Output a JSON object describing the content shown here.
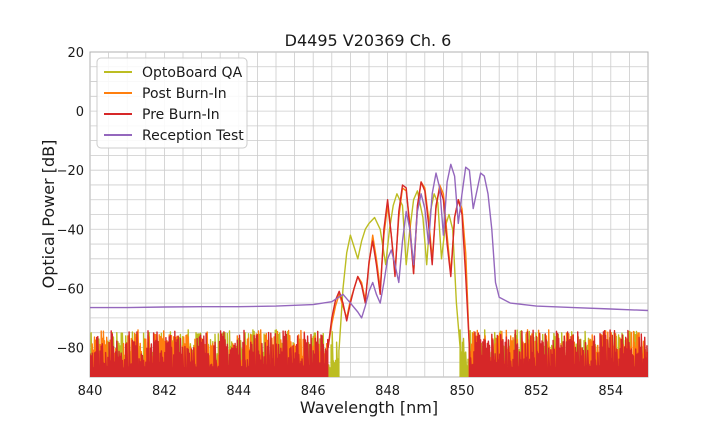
{
  "chart_data": {
    "type": "line",
    "title": "D4495 V20369 Ch. 6",
    "xlabel": "Wavelength [nm]",
    "ylabel": "Optical Power [dB]",
    "xlim": [
      840,
      855
    ],
    "ylim": [
      -90,
      20
    ],
    "xticks": [
      840,
      842,
      844,
      846,
      848,
      850,
      852,
      854
    ],
    "yticks": [
      -80,
      -60,
      -40,
      -20,
      0,
      20
    ],
    "minor_grid": true,
    "legend": "top-left",
    "series": [
      {
        "name": "OptoBoard QA",
        "color": "#bcbd22",
        "noise_range": [
          840,
          846.7
        ],
        "points": [
          [
            846.7,
            -80
          ],
          [
            846.8,
            -60
          ],
          [
            846.9,
            -48
          ],
          [
            847.0,
            -42
          ],
          [
            847.1,
            -46
          ],
          [
            847.2,
            -50
          ],
          [
            847.3,
            -44
          ],
          [
            847.4,
            -40
          ],
          [
            847.5,
            -38
          ],
          [
            847.65,
            -36
          ],
          [
            847.8,
            -40
          ],
          [
            847.95,
            -52
          ],
          [
            848.05,
            -40
          ],
          [
            848.15,
            -32
          ],
          [
            848.25,
            -28
          ],
          [
            848.4,
            -32
          ],
          [
            848.5,
            -52
          ],
          [
            848.6,
            -40
          ],
          [
            848.7,
            -30
          ],
          [
            848.8,
            -27
          ],
          [
            848.95,
            -36
          ],
          [
            849.05,
            -52
          ],
          [
            849.15,
            -34
          ],
          [
            849.25,
            -28
          ],
          [
            849.35,
            -31
          ],
          [
            849.45,
            -50
          ],
          [
            849.55,
            -39
          ],
          [
            849.65,
            -35
          ],
          [
            849.75,
            -40
          ],
          [
            849.85,
            -65
          ],
          [
            849.95,
            -80
          ]
        ],
        "tail_noise_range": [
          849.95,
          855
        ]
      },
      {
        "name": "Post Burn-In",
        "color": "#ff7f0e",
        "noise_range": [
          840,
          846.4
        ],
        "points": [
          [
            846.4,
            -80
          ],
          [
            846.5,
            -72
          ],
          [
            846.6,
            -66
          ],
          [
            846.7,
            -62
          ],
          [
            846.8,
            -66
          ],
          [
            846.9,
            -70
          ],
          [
            847.0,
            -64
          ],
          [
            847.1,
            -60
          ],
          [
            847.2,
            -56
          ],
          [
            847.3,
            -58
          ],
          [
            847.4,
            -64
          ],
          [
            847.5,
            -52
          ],
          [
            847.6,
            -42
          ],
          [
            847.7,
            -50
          ],
          [
            847.8,
            -60
          ],
          [
            847.9,
            -42
          ],
          [
            848.0,
            -32
          ],
          [
            848.1,
            -42
          ],
          [
            848.2,
            -54
          ],
          [
            848.3,
            -36
          ],
          [
            848.4,
            -26
          ],
          [
            848.5,
            -27
          ],
          [
            848.6,
            -38
          ],
          [
            848.7,
            -55
          ],
          [
            848.8,
            -33
          ],
          [
            848.9,
            -24
          ],
          [
            849.0,
            -26
          ],
          [
            849.1,
            -36
          ],
          [
            849.2,
            -50
          ],
          [
            849.3,
            -33
          ],
          [
            849.4,
            -25
          ],
          [
            849.5,
            -28
          ],
          [
            849.6,
            -42
          ],
          [
            849.7,
            -55
          ],
          [
            849.8,
            -36
          ],
          [
            849.9,
            -30
          ],
          [
            850.0,
            -33
          ],
          [
            850.1,
            -48
          ],
          [
            850.2,
            -80
          ]
        ],
        "tail_noise_range": [
          850.2,
          855
        ]
      },
      {
        "name": "Pre Burn-In",
        "color": "#d62728",
        "noise_range": [
          840,
          846.4
        ],
        "points": [
          [
            846.4,
            -80
          ],
          [
            846.5,
            -70
          ],
          [
            846.6,
            -64
          ],
          [
            846.7,
            -61
          ],
          [
            846.8,
            -65
          ],
          [
            846.9,
            -71
          ],
          [
            847.0,
            -65
          ],
          [
            847.1,
            -60
          ],
          [
            847.2,
            -56
          ],
          [
            847.3,
            -59
          ],
          [
            847.4,
            -65
          ],
          [
            847.5,
            -51
          ],
          [
            847.6,
            -44
          ],
          [
            847.7,
            -52
          ],
          [
            847.8,
            -62
          ],
          [
            847.9,
            -40
          ],
          [
            848.0,
            -30
          ],
          [
            848.1,
            -42
          ],
          [
            848.2,
            -56
          ],
          [
            848.3,
            -34
          ],
          [
            848.4,
            -25
          ],
          [
            848.5,
            -26
          ],
          [
            848.6,
            -40
          ],
          [
            848.7,
            -55
          ],
          [
            848.8,
            -32
          ],
          [
            848.9,
            -24
          ],
          [
            849.0,
            -27
          ],
          [
            849.1,
            -38
          ],
          [
            849.2,
            -52
          ],
          [
            849.3,
            -32
          ],
          [
            849.4,
            -26
          ],
          [
            849.5,
            -30
          ],
          [
            849.6,
            -45
          ],
          [
            849.7,
            -56
          ],
          [
            849.8,
            -36
          ],
          [
            849.9,
            -30
          ],
          [
            850.0,
            -35
          ],
          [
            850.1,
            -56
          ],
          [
            850.2,
            -80
          ]
        ],
        "tail_noise_range": [
          850.2,
          855
        ]
      },
      {
        "name": "Reception Test",
        "color": "#9467bd",
        "points": [
          [
            840,
            -66.5
          ],
          [
            841,
            -66.5
          ],
          [
            842,
            -66.3
          ],
          [
            843,
            -66.2
          ],
          [
            844,
            -66.2
          ],
          [
            845,
            -66
          ],
          [
            846,
            -65.5
          ],
          [
            846.5,
            -64.5
          ],
          [
            846.8,
            -62
          ],
          [
            847.0,
            -65
          ],
          [
            847.2,
            -68
          ],
          [
            847.3,
            -70
          ],
          [
            847.4,
            -66
          ],
          [
            847.5,
            -61
          ],
          [
            847.6,
            -58
          ],
          [
            847.7,
            -62
          ],
          [
            847.8,
            -65
          ],
          [
            847.9,
            -58
          ],
          [
            848.0,
            -50
          ],
          [
            848.1,
            -47
          ],
          [
            848.2,
            -52
          ],
          [
            848.3,
            -58
          ],
          [
            848.4,
            -44
          ],
          [
            848.5,
            -34
          ],
          [
            848.6,
            -40
          ],
          [
            848.7,
            -52
          ],
          [
            848.8,
            -34
          ],
          [
            848.9,
            -28
          ],
          [
            849.0,
            -33
          ],
          [
            849.1,
            -45
          ],
          [
            849.2,
            -28
          ],
          [
            849.3,
            -21
          ],
          [
            849.4,
            -26
          ],
          [
            849.5,
            -42
          ],
          [
            849.6,
            -24
          ],
          [
            849.7,
            -18
          ],
          [
            849.8,
            -22
          ],
          [
            849.9,
            -38
          ],
          [
            850.0,
            -28
          ],
          [
            850.1,
            -19
          ],
          [
            850.2,
            -20
          ],
          [
            850.3,
            -33
          ],
          [
            850.4,
            -27
          ],
          [
            850.5,
            -21
          ],
          [
            850.6,
            -22
          ],
          [
            850.7,
            -28
          ],
          [
            850.8,
            -40
          ],
          [
            850.9,
            -58
          ],
          [
            851.0,
            -63
          ],
          [
            851.3,
            -65
          ],
          [
            852,
            -66
          ],
          [
            853,
            -66.5
          ],
          [
            854,
            -67
          ],
          [
            855,
            -67.5
          ]
        ]
      }
    ]
  }
}
